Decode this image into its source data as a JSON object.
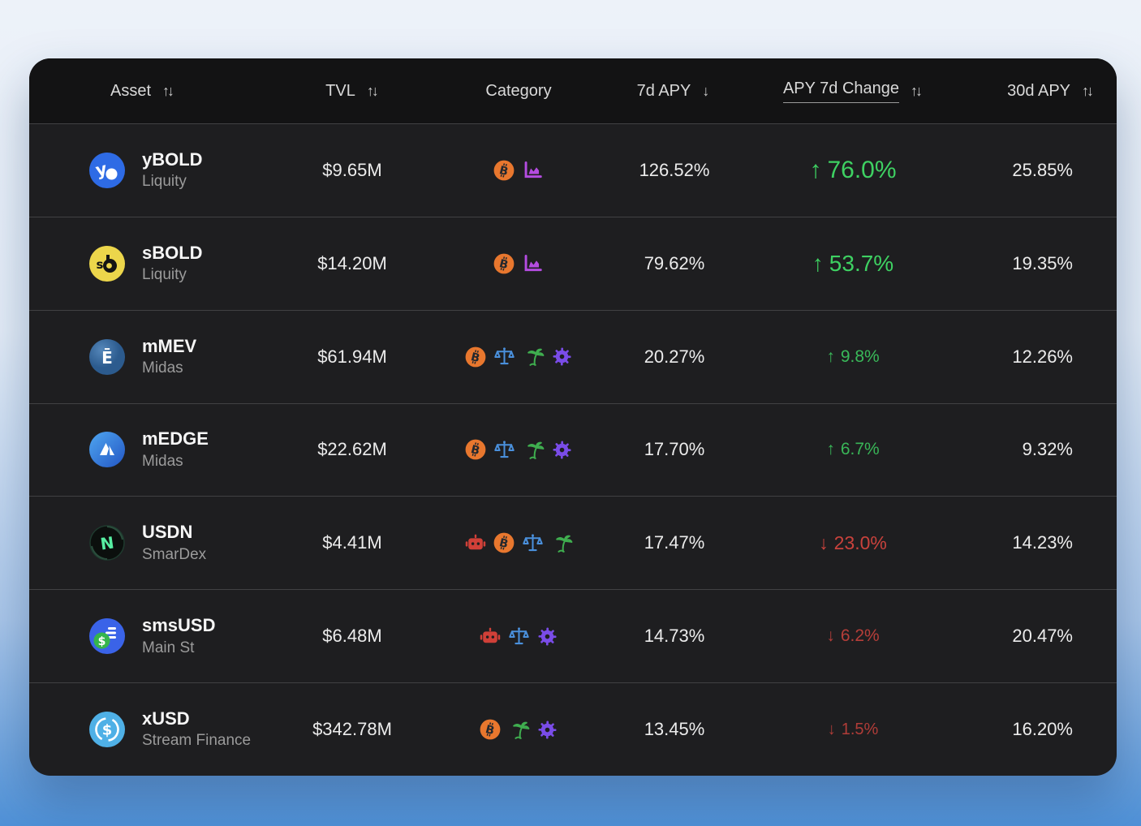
{
  "table": {
    "columns": [
      {
        "label": "Asset",
        "sort": "both"
      },
      {
        "label": "TVL",
        "sort": "both"
      },
      {
        "label": "Category",
        "sort": "none"
      },
      {
        "label": "7d APY",
        "sort": "down"
      },
      {
        "label": "APY 7d Change",
        "sort": "both",
        "underlined": true
      },
      {
        "label": "30d APY",
        "sort": "both"
      }
    ],
    "rows": [
      {
        "asset": "yBOLD",
        "protocol": "Liquity",
        "logo": "ybold",
        "tvl": "$9.65M",
        "categories": [
          "bitcoin",
          "chart"
        ],
        "apy_7d": "126.52%",
        "apy_7d_change": "76.0%",
        "change_direction": "up",
        "change_value": 76.0,
        "apy_30d": "25.85%"
      },
      {
        "asset": "sBOLD",
        "protocol": "Liquity",
        "logo": "sbold",
        "tvl": "$14.20M",
        "categories": [
          "bitcoin",
          "chart"
        ],
        "apy_7d": "79.62%",
        "apy_7d_change": "53.7%",
        "change_direction": "up",
        "change_value": 53.7,
        "apy_30d": "19.35%"
      },
      {
        "asset": "mMEV",
        "protocol": "Midas",
        "logo": "mmev",
        "tvl": "$61.94M",
        "categories": [
          "bitcoin",
          "scales",
          "palm",
          "gear"
        ],
        "apy_7d": "20.27%",
        "apy_7d_change": "9.8%",
        "change_direction": "up",
        "change_value": 9.8,
        "apy_30d": "12.26%"
      },
      {
        "asset": "mEDGE",
        "protocol": "Midas",
        "logo": "medge",
        "tvl": "$22.62M",
        "categories": [
          "bitcoin",
          "scales",
          "palm",
          "gear"
        ],
        "apy_7d": "17.70%",
        "apy_7d_change": "6.7%",
        "change_direction": "up",
        "change_value": 6.7,
        "apy_30d": "9.32%"
      },
      {
        "asset": "USDN",
        "protocol": "SmarDex",
        "logo": "usdn",
        "tvl": "$4.41M",
        "categories": [
          "robot",
          "bitcoin",
          "scales",
          "palm"
        ],
        "apy_7d": "17.47%",
        "apy_7d_change": "23.0%",
        "change_direction": "down",
        "change_value": 23.0,
        "apy_30d": "14.23%"
      },
      {
        "asset": "smsUSD",
        "protocol": "Main St",
        "logo": "smsusd",
        "tvl": "$6.48M",
        "categories": [
          "robot",
          "scales",
          "gear"
        ],
        "apy_7d": "14.73%",
        "apy_7d_change": "6.2%",
        "change_direction": "down",
        "change_value": 6.2,
        "apy_30d": "20.47%"
      },
      {
        "asset": "xUSD",
        "protocol": "Stream Finance",
        "logo": "xusd",
        "tvl": "$342.78M",
        "categories": [
          "bitcoin",
          "palm",
          "gear"
        ],
        "apy_7d": "13.45%",
        "apy_7d_change": "1.5%",
        "change_direction": "down",
        "change_value": 1.5,
        "apy_30d": "16.20%"
      }
    ]
  },
  "icons": {
    "sort_both": "↑↓",
    "sort_down": "↓",
    "arrow_up": "↑",
    "arrow_down": "↓"
  },
  "colors": {
    "up": "#3ed162",
    "down": "#d2443e",
    "bitcoin": "#e8772e",
    "chart": "#b44ce0",
    "scales": "#4a90dc",
    "palm": "#3fae4f",
    "gear": "#7a4ce8",
    "robot": "#d04038"
  }
}
